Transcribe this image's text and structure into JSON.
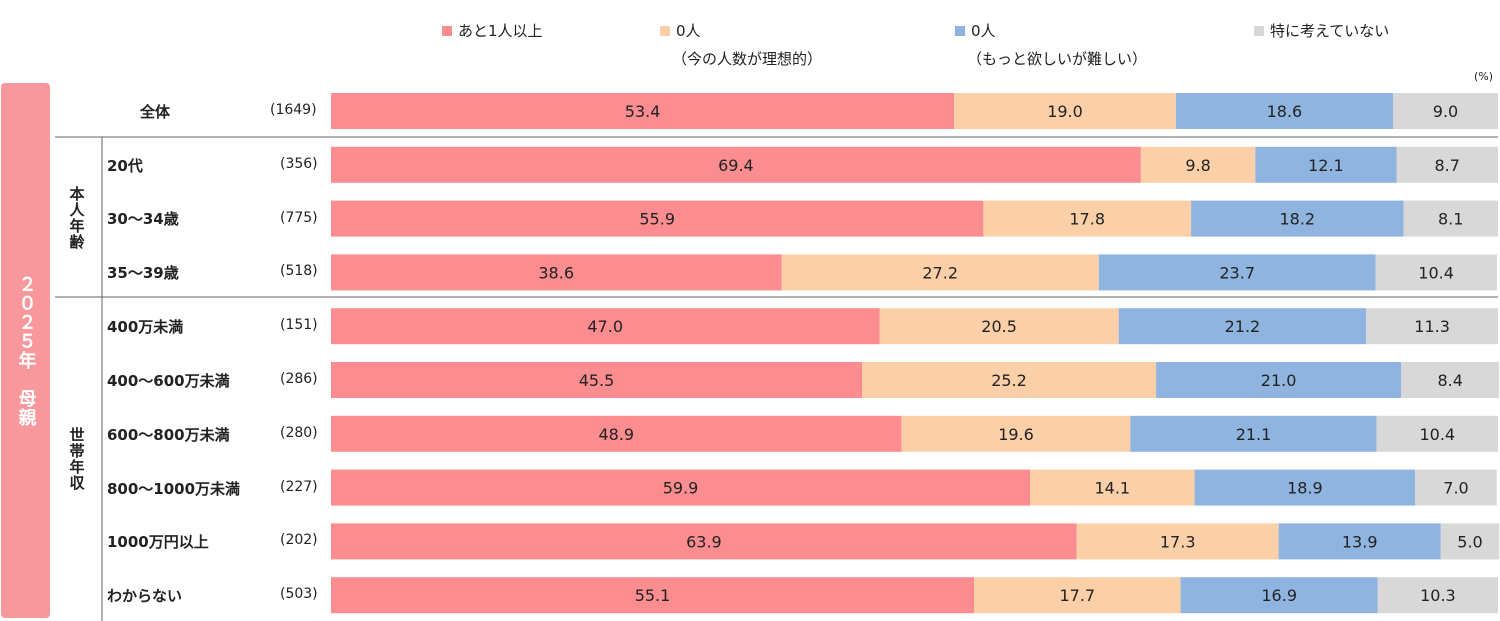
{
  "side_title": "２０２５年　母親",
  "unit": "(%)",
  "groups": [
    {
      "label": "本人年齢"
    },
    {
      "label": "世帯年収"
    }
  ],
  "legend": [
    {
      "label": "あと1人以上",
      "sub": "",
      "color": "#fb8c8f"
    },
    {
      "label": "0人",
      "sub": "（今の人数が理想的）",
      "color": "#fbcfa7"
    },
    {
      "label": "0人",
      "sub": "（もっと欲しいが難しい）",
      "color": "#8fb4e0"
    },
    {
      "label": "特に考えていない",
      "sub": "",
      "color": "#d8d8d8"
    }
  ],
  "rows": [
    {
      "label": "全体",
      "n": "(1649)"
    },
    {
      "label": "20代",
      "n": "(356)"
    },
    {
      "label": "30～34歳",
      "n": "(775)"
    },
    {
      "label": "35～39歳",
      "n": "(518)"
    },
    {
      "label": "400万未満",
      "n": "(151)"
    },
    {
      "label": "400～600万未満",
      "n": "(286)"
    },
    {
      "label": "600～800万未満",
      "n": "(280)"
    },
    {
      "label": "800～1000万未満",
      "n": "(227)"
    },
    {
      "label": "1000万円以上",
      "n": "(202)"
    },
    {
      "label": "わからない",
      "n": "(503)"
    }
  ],
  "chart_data": {
    "type": "bar",
    "orientation": "horizontal",
    "stacked": true,
    "percent_axis": [
      0,
      100
    ],
    "unit": "%",
    "categories": [
      "全体",
      "20代",
      "30～34歳",
      "35～39歳",
      "400万未満",
      "400～600万未満",
      "600～800万未満",
      "800～1000万未満",
      "1000万円以上",
      "わからない"
    ],
    "series": [
      {
        "name": "あと1人以上",
        "values": [
          53.4,
          69.4,
          55.9,
          38.6,
          47.0,
          45.5,
          48.9,
          59.9,
          63.9,
          55.1
        ]
      },
      {
        "name": "0人（今の人数が理想的）",
        "values": [
          19.0,
          9.8,
          17.8,
          27.2,
          20.5,
          25.2,
          19.6,
          14.1,
          17.3,
          17.7
        ]
      },
      {
        "name": "0人（もっと欲しいが難しい）",
        "values": [
          18.6,
          12.1,
          18.2,
          23.7,
          21.2,
          21.0,
          21.1,
          18.9,
          13.9,
          16.9
        ]
      },
      {
        "name": "特に考えていない",
        "values": [
          9.0,
          8.7,
          8.1,
          10.4,
          11.3,
          8.4,
          10.4,
          7.0,
          5.0,
          10.3
        ]
      }
    ]
  }
}
